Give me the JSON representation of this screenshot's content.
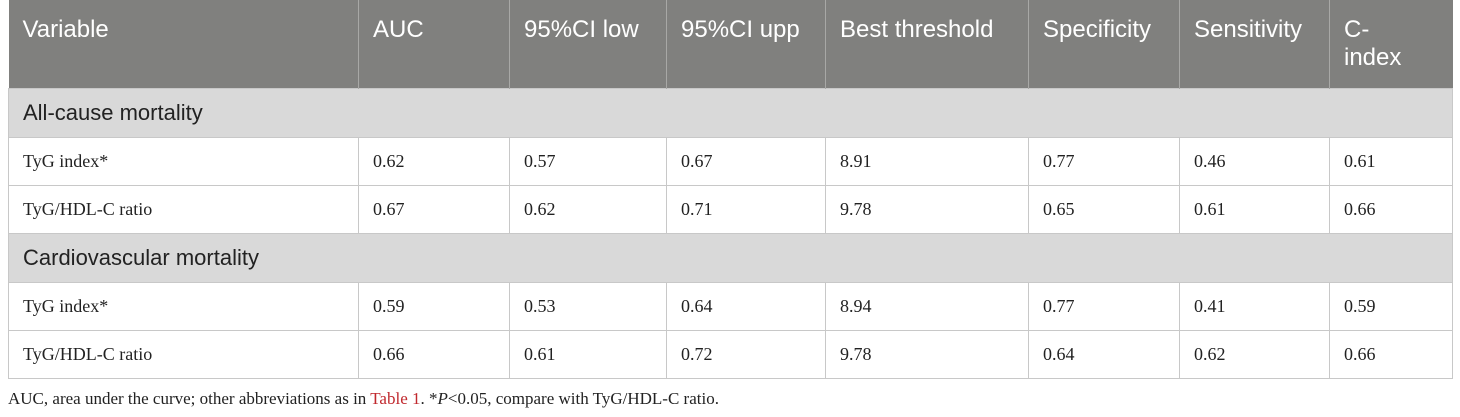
{
  "table": {
    "header": [
      "Variable",
      "AUC",
      "95%CI low",
      "95%CI upp",
      "Best threshold",
      "Specificity",
      "Sensitivity",
      "C-index"
    ],
    "sections": [
      {
        "title": "All-cause mortality",
        "rows": [
          [
            "TyG index*",
            "0.62",
            "0.57",
            "0.67",
            "8.91",
            "0.77",
            "0.46",
            "0.61"
          ],
          [
            "TyG/HDL-C ratio",
            "0.67",
            "0.62",
            "0.71",
            "9.78",
            "0.65",
            "0.61",
            "0.66"
          ]
        ]
      },
      {
        "title": "Cardiovascular mortality",
        "rows": [
          [
            "TyG index*",
            "0.59",
            "0.53",
            "0.64",
            "8.94",
            "0.77",
            "0.41",
            "0.59"
          ],
          [
            "TyG/HDL-C ratio",
            "0.66",
            "0.61",
            "0.72",
            "9.78",
            "0.64",
            "0.62",
            "0.66"
          ]
        ]
      }
    ]
  },
  "footnote": {
    "before": "AUC, area under the curve; other abbreviations as in ",
    "link": "Table 1",
    "middle": ". *",
    "italic": "P",
    "after": "<0.05, compare with TyG/HDL-C ratio."
  }
}
